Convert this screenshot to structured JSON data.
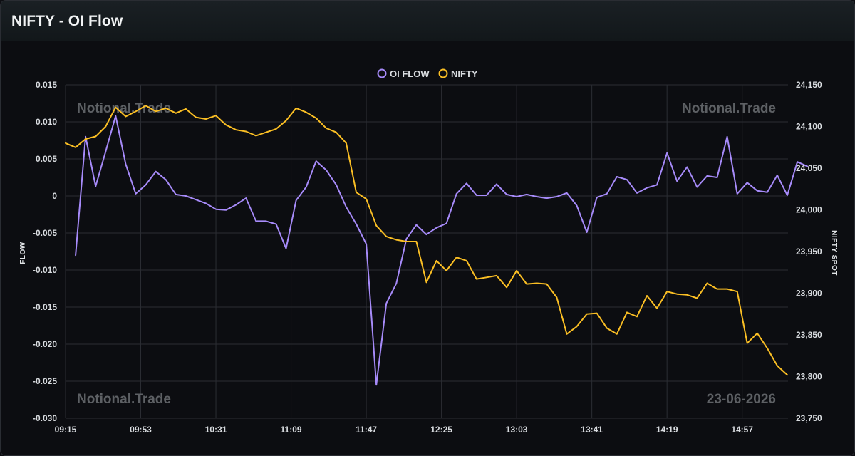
{
  "header": {
    "title": "NIFTY - OI Flow"
  },
  "watermarks": {
    "top_left": "Notional.Trade",
    "top_right": "Notional.Trade",
    "bottom_left": "Notional.Trade",
    "bottom_right": "23-06-2026"
  },
  "colors": {
    "oi_flow": "#a78bfa",
    "nifty": "#fbbf24",
    "grid": "#2b2d33"
  },
  "chart_data": {
    "type": "line",
    "legend_position": "top-center",
    "grid": true,
    "x_tick_labels": [
      "09:15",
      "09:53",
      "10:31",
      "11:09",
      "11:47",
      "12:25",
      "13:03",
      "13:41",
      "14:19",
      "14:57"
    ],
    "y_left": {
      "label": "FLOW",
      "range": [
        -0.03,
        0.015
      ],
      "tick_labels": [
        "0.015",
        "0.010",
        "0.005",
        "0",
        "-0.005",
        "-0.010",
        "-0.015",
        "-0.020",
        "-0.025",
        "-0.030"
      ]
    },
    "y_right": {
      "label": "NIFTY SPOT",
      "range": [
        23750,
        24150
      ],
      "tick_labels": [
        "24,150",
        "24,100",
        "24,050",
        "24,000",
        "23,950",
        "23,900",
        "23,850",
        "23,800",
        "23,750"
      ]
    },
    "series": [
      {
        "name": "OI FLOW",
        "axis": "left",
        "start_index": 1,
        "values": [
          -0.008,
          0.008,
          0.0013,
          0.006,
          0.0108,
          0.0043,
          0.0003,
          0.0015,
          0.0033,
          0.0022,
          0.0002,
          0.0,
          -0.0005,
          -0.001,
          -0.0018,
          -0.0019,
          -0.0012,
          -0.0003,
          -0.0034,
          -0.0034,
          -0.0038,
          -0.0071,
          -0.0006,
          0.0012,
          0.0047,
          0.0035,
          0.0015,
          -0.0015,
          -0.0038,
          -0.0065,
          -0.0255,
          -0.0145,
          -0.0118,
          -0.0058,
          -0.0039,
          -0.0052,
          -0.0043,
          -0.0037,
          0.0003,
          0.0017,
          0.0001,
          0.0001,
          0.0016,
          0.0002,
          -0.0001,
          0.0002,
          -0.0001,
          -0.0003,
          -0.0001,
          0.0004,
          -0.0013,
          -0.0049,
          -0.0002,
          0.0003,
          0.0026,
          0.0022,
          0.0004,
          0.0011,
          0.0015,
          0.0058,
          0.002,
          0.0039,
          0.0012,
          0.0027,
          0.0025,
          0.008,
          0.0003,
          0.0018,
          0.0007,
          0.0005,
          0.0028,
          0.0001,
          0.0046,
          0.004
        ]
      },
      {
        "name": "NIFTY",
        "axis": "right",
        "start_index": 0,
        "values": [
          24080,
          24075,
          24085,
          24088,
          24100,
          24123,
          24112,
          24118,
          24125,
          24118,
          24122,
          24116,
          24121,
          24111,
          24109,
          24113,
          24102,
          24096,
          24094,
          24089,
          24093,
          24097,
          24107,
          24122,
          24117,
          24110,
          24098,
          24093,
          24080,
          24021,
          24013,
          23981,
          23968,
          23964,
          23962,
          23962,
          23913,
          23939,
          23927,
          23943,
          23939,
          23917,
          23919,
          23921,
          23907,
          23927,
          23911,
          23912,
          23911,
          23895,
          23851,
          23860,
          23875,
          23876,
          23858,
          23851,
          23877,
          23872,
          23897,
          23882,
          23902,
          23899,
          23898,
          23894,
          23912,
          23905,
          23905,
          23902,
          23840,
          23852,
          23834,
          23813,
          23802
        ]
      }
    ]
  }
}
